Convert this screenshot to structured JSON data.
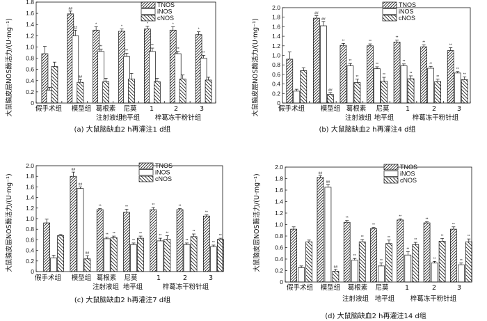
{
  "legend": [
    "TNOS",
    "iNOS",
    "cNOS"
  ],
  "ylabel": "大鼠脑皮层NOS酶活力/(U·mg⁻¹)",
  "categories": [
    {
      "line1": "假手术组",
      "line2": ""
    },
    {
      "line1": "模型组",
      "line2": ""
    },
    {
      "line1": "葛根素",
      "line2": "注射液组"
    },
    {
      "line1": "尼莫",
      "line2": "地平组"
    },
    {
      "line1": "1",
      "line2": ""
    },
    {
      "line1": "2",
      "line2": "梓葛冻干粉针组"
    },
    {
      "line1": "3",
      "line2": ""
    }
  ],
  "chart_data": [
    {
      "type": "bar",
      "caption": "(a) 大鼠脑缺血2 h再灌注1 d组",
      "ylim": [
        0,
        1.8
      ],
      "yticks": [
        "0",
        "0.2",
        "0.4",
        "0.6",
        "0.8",
        "1.0",
        "1.2",
        "1.4",
        "1.6",
        "1.8"
      ],
      "series": [
        {
          "name": "TNOS",
          "values": [
            0.88,
            1.59,
            1.3,
            1.28,
            1.32,
            1.3,
            1.22
          ],
          "errors": [
            0.13,
            0.05,
            0.06,
            0.04,
            0.05,
            0.06,
            0.05
          ],
          "marks": [
            "",
            "##",
            "*",
            "*",
            "*",
            "*",
            "*"
          ]
        },
        {
          "name": "iNOS",
          "values": [
            0.23,
            1.2,
            0.92,
            0.83,
            0.92,
            0.88,
            0.8
          ],
          "errors": [
            0.05,
            0.1,
            0.04,
            0.06,
            0.06,
            0.04,
            0.05
          ],
          "marks": [
            "",
            "##",
            "**",
            "**",
            "**",
            "**",
            "**"
          ]
        },
        {
          "name": "cNOS",
          "values": [
            0.65,
            0.37,
            0.38,
            0.43,
            0.38,
            0.43,
            0.41
          ],
          "errors": [
            0.08,
            0.05,
            0.06,
            0.1,
            0.06,
            0.07,
            0.05
          ],
          "marks": [
            "",
            "##",
            "",
            "",
            "",
            "",
            ""
          ]
        }
      ]
    },
    {
      "type": "bar",
      "caption": "(b) 大鼠脑缺血2 h再灌注4 d组",
      "ylim": [
        0,
        2.0
      ],
      "yticks": [
        "0",
        "0.2",
        "0.4",
        "0.6",
        "0.8",
        "1.0",
        "1.2",
        "1.4",
        "1.6",
        "1.8",
        "2.0"
      ],
      "series": [
        {
          "name": "TNOS",
          "values": [
            0.92,
            1.78,
            1.21,
            1.2,
            1.28,
            1.18,
            1.1
          ],
          "errors": [
            0.15,
            0.05,
            0.04,
            0.04,
            0.04,
            0.04,
            0.06
          ],
          "marks": [
            "",
            "##",
            "**",
            "**",
            "**",
            "**",
            "**"
          ]
        },
        {
          "name": "iNOS",
          "values": [
            0.25,
            1.62,
            0.78,
            0.72,
            0.78,
            0.73,
            0.63
          ],
          "errors": [
            0.04,
            0.09,
            0.05,
            0.04,
            0.04,
            0.04,
            0.03
          ],
          "marks": [
            "",
            "##",
            "**",
            "**",
            "**",
            "**",
            "**"
          ]
        },
        {
          "name": "cNOS",
          "values": [
            0.68,
            0.18,
            0.43,
            0.46,
            0.51,
            0.45,
            0.49
          ],
          "errors": [
            0.06,
            0.04,
            0.07,
            0.08,
            0.06,
            0.05,
            0.06
          ],
          "marks": [
            "",
            "##",
            "**",
            "**",
            "**",
            "**",
            "**"
          ]
        }
      ]
    },
    {
      "type": "bar",
      "caption": "(c) 大鼠脑缺血2 h再灌注7 d组",
      "ylim": [
        0,
        2.0
      ],
      "yticks": [
        "0",
        "0.2",
        "0.4",
        "0.6",
        "0.8",
        "1.0",
        "1.2",
        "1.4",
        "1.6",
        "1.8",
        "2.0"
      ],
      "series": [
        {
          "name": "TNOS",
          "values": [
            0.92,
            1.8,
            1.17,
            1.12,
            1.17,
            1.17,
            1.05
          ],
          "errors": [
            0.07,
            0.08,
            0.02,
            0.06,
            0.04,
            0.02,
            0.02
          ],
          "marks": [
            "",
            "##",
            "**",
            "**",
            "**",
            "**",
            "**"
          ]
        },
        {
          "name": "iNOS",
          "values": [
            0.26,
            1.57,
            0.62,
            0.51,
            0.58,
            0.51,
            0.47
          ],
          "errors": [
            0.05,
            0.03,
            0.03,
            0.03,
            0.05,
            0.03,
            0.03
          ],
          "marks": [
            "",
            "##",
            "**",
            "**",
            "**",
            "**",
            "**"
          ]
        },
        {
          "name": "cNOS",
          "values": [
            0.68,
            0.24,
            0.64,
            0.63,
            0.61,
            0.66,
            0.61
          ],
          "errors": [
            0.02,
            0.06,
            0.03,
            0.04,
            0.07,
            0.05,
            0.02
          ],
          "marks": [
            "",
            "##",
            "**",
            "**",
            "**",
            "**",
            "**"
          ]
        }
      ]
    },
    {
      "type": "bar",
      "caption": "(d) 大鼠脑缺血2 h再灌注14 d组",
      "ylim": [
        0,
        2.0
      ],
      "yticks": [
        "0",
        "0.2",
        "0.4",
        "0.6",
        "0.8",
        "1.0",
        "1.2",
        "1.4",
        "1.6",
        "1.8",
        "2.0"
      ],
      "series": [
        {
          "name": "TNOS",
          "values": [
            0.92,
            1.82,
            1.04,
            0.93,
            1.08,
            1.03,
            0.92
          ],
          "errors": [
            0.04,
            0.03,
            0.03,
            0.02,
            0.02,
            0.02,
            0.04
          ],
          "marks": [
            "",
            "##",
            "**",
            "**",
            "**",
            "**",
            "**"
          ]
        },
        {
          "name": "iNOS",
          "values": [
            0.25,
            1.65,
            0.38,
            0.28,
            0.47,
            0.33,
            0.3
          ],
          "errors": [
            0.03,
            0.05,
            0.03,
            0.05,
            0.06,
            0.03,
            0.03
          ],
          "marks": [
            "",
            "##",
            "**",
            "**",
            "**",
            "**",
            "**"
          ]
        },
        {
          "name": "cNOS",
          "values": [
            0.7,
            0.19,
            0.7,
            0.67,
            0.65,
            0.71,
            0.7
          ],
          "errors": [
            0.03,
            0.03,
            0.04,
            0.06,
            0.04,
            0.05,
            0.05
          ],
          "marks": [
            "",
            "##",
            "**",
            "**",
            "**",
            "**",
            "**"
          ]
        }
      ]
    }
  ]
}
